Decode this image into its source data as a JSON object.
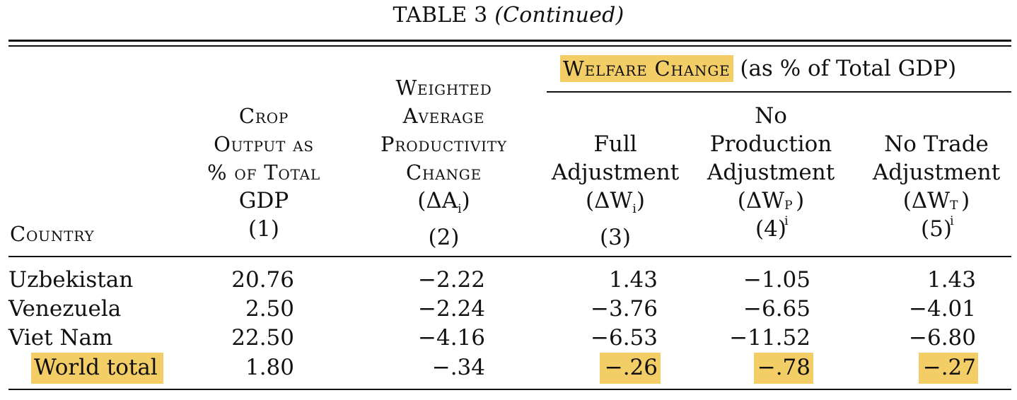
{
  "table": {
    "title": "TABLE 3",
    "title_note": "(Continued)",
    "group_header": {
      "highlight_label": "Welfare Change",
      "rest_label": "(as % of Total GDP)"
    },
    "columns": {
      "country": "Country",
      "c1": {
        "lines": [
          "Crop",
          "Output as",
          "% of Total",
          "GDP"
        ],
        "number": "(1)"
      },
      "c2": {
        "lines": [
          "Weighted",
          "Average",
          "Productivity",
          "Change"
        ],
        "symbol": "(ΔA",
        "symbol_sub": "i",
        "symbol_close": ")",
        "number": "(2)"
      },
      "c3": {
        "lines": [
          "Full",
          "Adjustment"
        ],
        "symbol": "(ΔW",
        "symbol_sub": "i",
        "symbol_close": ")",
        "number": "(3)"
      },
      "c4": {
        "lines": [
          "No",
          "Production",
          "Adjustment"
        ],
        "symbol": "(ΔW",
        "symbol_sub": "i",
        "symbol_sup": "P",
        "symbol_close": ")",
        "number": "(4)"
      },
      "c5": {
        "lines": [
          "No Trade",
          "Adjustment"
        ],
        "symbol": "(ΔW",
        "symbol_sub": "i",
        "symbol_sup": "T",
        "symbol_close": ")",
        "number": "(5)"
      }
    },
    "rows": [
      {
        "country": "Uzbekistan",
        "c1": "20.76",
        "c2": "−2.22",
        "c3": "1.43",
        "c4": "−1.05",
        "c5": "1.43"
      },
      {
        "country": "Venezuela",
        "c1": "2.50",
        "c2": "−2.24",
        "c3": "−3.76",
        "c4": "−6.65",
        "c5": "−4.01"
      },
      {
        "country": "Viet Nam",
        "c1": "22.50",
        "c2": "−4.16",
        "c3": "−6.53",
        "c4": "−11.52",
        "c5": "−6.80"
      },
      {
        "country": "World total",
        "c1": "1.80",
        "c2": "−.34",
        "c3": "−.26",
        "c4": "−.78",
        "c5": "−.27"
      }
    ],
    "highlight_color": "#f3cd65"
  }
}
